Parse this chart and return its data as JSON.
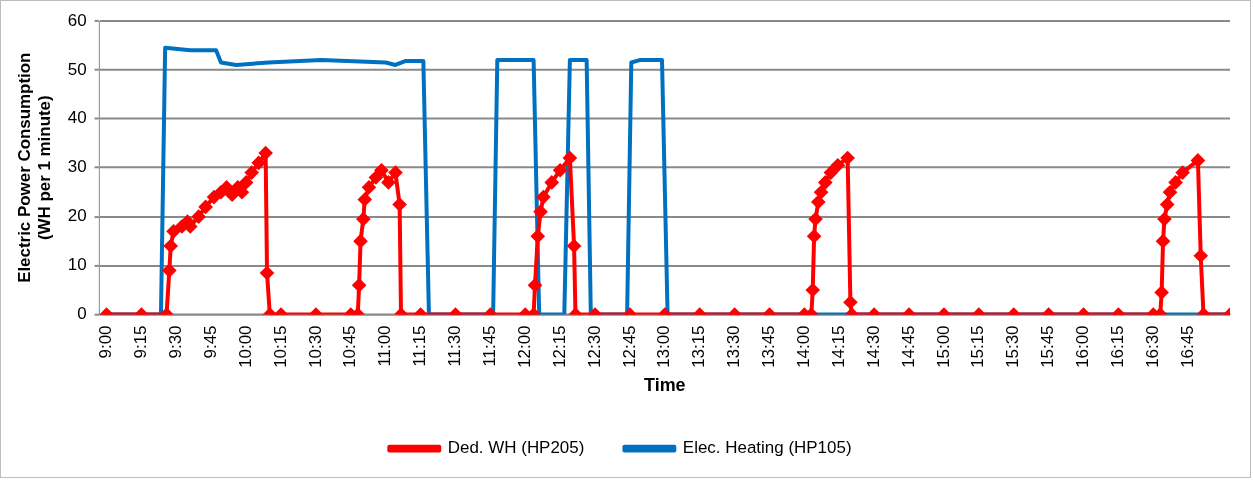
{
  "chart_data": {
    "type": "line",
    "xlabel": "Time",
    "ylabel": "Electric Power Consumption\n(WH per 1 minute)",
    "xlim": [
      8.95,
      17.05
    ],
    "xticks": [
      {
        "value": 9,
        "label": "9:00"
      },
      {
        "value": 9.25,
        "label": "9:15"
      },
      {
        "value": 9.5,
        "label": "9:30"
      },
      {
        "value": 9.75,
        "label": "9:45"
      },
      {
        "value": 10,
        "label": "10:00"
      },
      {
        "value": 10.25,
        "label": "10:15"
      },
      {
        "value": 10.5,
        "label": "10:30"
      },
      {
        "value": 10.75,
        "label": "10:45"
      },
      {
        "value": 11,
        "label": "11:00"
      },
      {
        "value": 11.25,
        "label": "11:15"
      },
      {
        "value": 11.5,
        "label": "11:30"
      },
      {
        "value": 11.75,
        "label": "11:45"
      },
      {
        "value": 12,
        "label": "12:00"
      },
      {
        "value": 12.25,
        "label": "12:15"
      },
      {
        "value": 12.5,
        "label": "12:30"
      },
      {
        "value": 12.75,
        "label": "12:45"
      },
      {
        "value": 13,
        "label": "13:00"
      },
      {
        "value": 13.25,
        "label": "13:15"
      },
      {
        "value": 13.5,
        "label": "13:30"
      },
      {
        "value": 13.75,
        "label": "13:45"
      },
      {
        "value": 14,
        "label": "14:00"
      },
      {
        "value": 14.25,
        "label": "14:15"
      },
      {
        "value": 14.5,
        "label": "14:30"
      },
      {
        "value": 14.75,
        "label": "14:45"
      },
      {
        "value": 15,
        "label": "15:00"
      },
      {
        "value": 15.25,
        "label": "15:15"
      },
      {
        "value": 15.5,
        "label": "15:30"
      },
      {
        "value": 15.75,
        "label": "15:45"
      },
      {
        "value": 16,
        "label": "16:00"
      },
      {
        "value": 16.25,
        "label": "16:15"
      },
      {
        "value": 16.5,
        "label": "16:30"
      },
      {
        "value": 16.75,
        "label": "16:45"
      }
    ],
    "ylim": [
      0,
      60
    ],
    "yticks": [
      0,
      10,
      20,
      30,
      40,
      50,
      60
    ],
    "grid": "y",
    "legend": "bottom",
    "line_style": "solid",
    "series": [
      {
        "name": "Ded. WH (HP205)",
        "color": "#ff0000",
        "marker": "diamond",
        "x": [
          9,
          9.25,
          9.43,
          9.45,
          9.46,
          9.48,
          9.54,
          9.58,
          9.6,
          9.66,
          9.71,
          9.77,
          9.82,
          9.86,
          9.9,
          9.94,
          9.97,
          10,
          10.04,
          10.09,
          10.14,
          10.15,
          10.17,
          10.25,
          10.5,
          10.75,
          10.8,
          10.81,
          10.82,
          10.84,
          10.85,
          10.88,
          10.93,
          10.97,
          11.02,
          11.07,
          11.1,
          11.11,
          11.25,
          11.5,
          11.75,
          12,
          12.06,
          12.07,
          12.09,
          12.11,
          12.13,
          12.19,
          12.25,
          12.32,
          12.35,
          12.36,
          12.5,
          12.75,
          13,
          13.25,
          13.5,
          13.75,
          14,
          14.05,
          14.06,
          14.07,
          14.08,
          14.1,
          14.12,
          14.15,
          14.19,
          14.24,
          14.31,
          14.33,
          14.34,
          14.5,
          14.75,
          15,
          15.25,
          15.5,
          15.75,
          16,
          16.25,
          16.5,
          16.55,
          16.56,
          16.57,
          16.58,
          16.6,
          16.62,
          16.66,
          16.71,
          16.82,
          16.84,
          16.86,
          17.05
        ],
        "values": [
          0,
          0,
          0,
          9,
          14,
          17,
          18,
          19,
          18,
          20,
          22,
          24,
          25,
          26,
          24.5,
          26,
          25,
          27,
          29,
          31,
          33,
          8.5,
          0,
          0,
          0,
          0,
          0,
          6,
          15,
          19.5,
          23.5,
          26,
          28,
          29.5,
          27,
          29,
          22.5,
          0,
          0,
          0,
          0,
          0,
          0,
          6,
          16,
          21,
          24,
          27,
          29.5,
          32,
          14,
          0,
          0,
          0,
          0,
          0,
          0,
          0,
          0,
          0,
          5,
          16,
          19.5,
          23,
          25,
          27,
          29,
          30.5,
          32,
          2.5,
          0,
          0,
          0,
          0,
          0,
          0,
          0,
          0,
          0,
          0,
          0,
          4.5,
          15,
          19.5,
          22.5,
          25,
          27,
          29,
          31.5,
          12,
          0,
          0
        ]
      },
      {
        "name": "Elec. Heating (HP105)",
        "color": "#0070c0",
        "marker": "none",
        "x": [
          9,
          9.39,
          9.42,
          9.6,
          9.785,
          9.82,
          9.93,
          10.16,
          10.54,
          11,
          11.07,
          11.14,
          11.27,
          11.31,
          11.77,
          11.8,
          12.06,
          12.1,
          12.28,
          12.32,
          12.44,
          12.47,
          12.73,
          12.76,
          12.82,
          12.98,
          13.02,
          17.05
        ],
        "values": [
          0,
          0,
          54.5,
          54,
          54,
          51.5,
          51,
          51.5,
          52,
          51.5,
          51,
          51.8,
          51.8,
          0,
          0,
          52,
          52,
          0,
          0,
          52,
          52,
          0,
          0,
          51.5,
          52,
          52,
          0,
          0
        ]
      }
    ]
  }
}
